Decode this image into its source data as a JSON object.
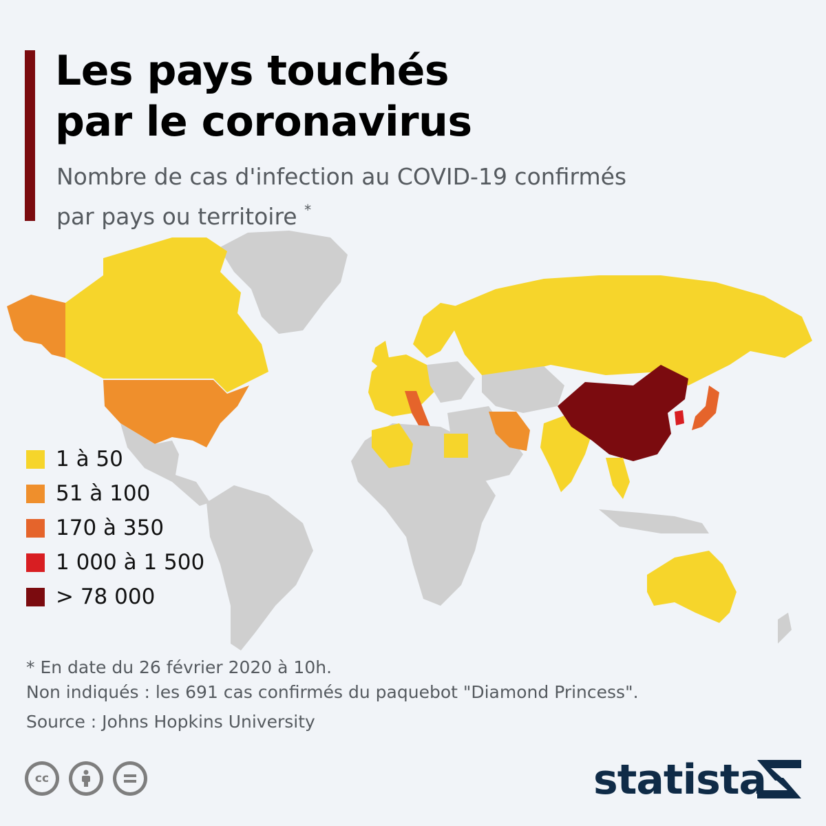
{
  "header": {
    "title": "Les pays touchés\npar le coronavirus",
    "subtitle": "Nombre de cas d'infection au COVID-19 confirmés\npar pays ou territoire",
    "subtitle_marker": "*"
  },
  "colors": {
    "bar": "#7b0b0f",
    "no_cases": "#cfcfcf",
    "ocean": "#f1f4f8"
  },
  "legend": [
    {
      "label": "1 à 50",
      "color": "#f6d52b"
    },
    {
      "label": "51 à 100",
      "color": "#ef8f2c"
    },
    {
      "label": "170 à 350",
      "color": "#e5642b"
    },
    {
      "label": "1 000 à 1 500",
      "color": "#d81e22"
    },
    {
      "label": "> 78 000",
      "color": "#7b0b0f"
    }
  ],
  "footer": {
    "note": "* En date du 26 février 2020 à 10h.\nNon indiqués : les 691 cas confirmés du paquebot \"Diamond Princess\".",
    "source": "Source : Johns Hopkins University",
    "brand": "statista",
    "license_icons": [
      "cc-icon",
      "attribution-icon",
      "no-derivatives-icon"
    ]
  }
}
